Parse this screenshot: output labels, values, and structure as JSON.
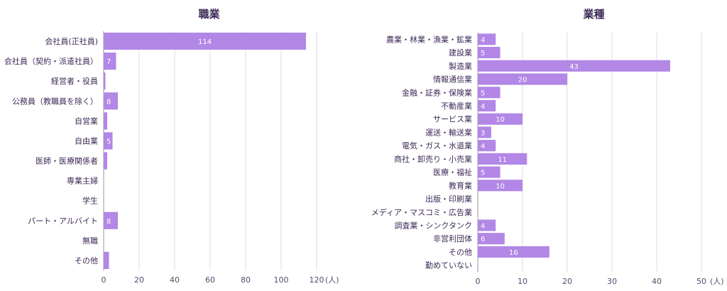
{
  "colors": {
    "bar": "#b287e6",
    "bar_label": "#ffffff",
    "text": "#3d2a57"
  },
  "chart_data": [
    {
      "type": "bar",
      "orientation": "horizontal",
      "title": "職業",
      "unit": "(人)",
      "xlim": [
        0,
        120
      ],
      "ticks": [
        0,
        20,
        40,
        60,
        80,
        100,
        120
      ],
      "grid": true,
      "categories": [
        "会社員(正社員)",
        "会社員（契約・派遣社員）",
        "経営者・役員",
        "公務員（教職員を除く）",
        "自営業",
        "自由業",
        "医師・医療関係者",
        "専業主婦",
        "学生",
        "パート・アルバイト",
        "無職",
        "その他"
      ],
      "values": [
        114,
        7,
        1,
        8,
        2,
        5,
        2,
        0,
        0,
        8,
        0,
        3
      ],
      "labels": [
        "114",
        "7",
        "",
        "8",
        "",
        "5",
        "",
        "",
        "",
        "8",
        "",
        ""
      ]
    },
    {
      "type": "bar",
      "orientation": "horizontal",
      "title": "業種",
      "unit": "(人)",
      "xlim": [
        0,
        50
      ],
      "ticks": [
        0,
        10,
        20,
        30,
        40,
        50
      ],
      "grid": true,
      "categories": [
        "農業・林業・漁業・鉱業",
        "建設業",
        "製造業",
        "情報通信業",
        "金融・証券・保険業",
        "不動産業",
        "サービス業",
        "運送・輸送業",
        "電気・ガス・水道業",
        "商社・卸売り・小売業",
        "医療・福祉",
        "教育業",
        "出版・印刷業",
        "メディア・マスコミ・広告業",
        "調査業・シンクタンク",
        "非営利団体",
        "その他",
        "勤めていない"
      ],
      "values": [
        4,
        5,
        43,
        20,
        5,
        4,
        10,
        3,
        4,
        11,
        5,
        10,
        0,
        0,
        4,
        6,
        16,
        0
      ],
      "labels": [
        "4",
        "5",
        "43",
        "20",
        "5",
        "4",
        "10",
        "3",
        "4",
        "11",
        "5",
        "10",
        "",
        "",
        "4",
        "6",
        "16",
        ""
      ]
    }
  ]
}
